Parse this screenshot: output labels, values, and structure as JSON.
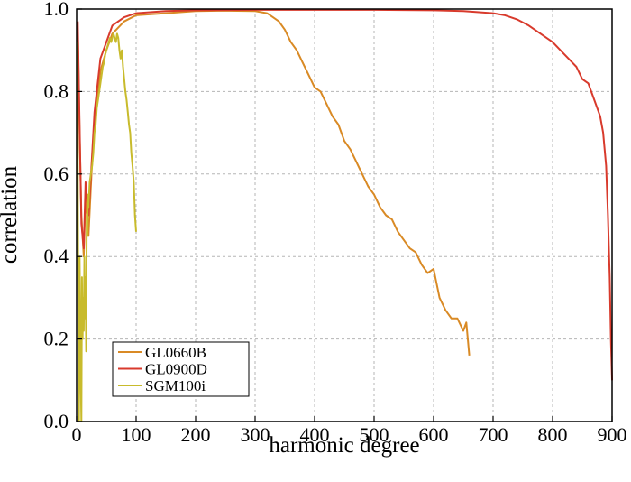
{
  "chart_data": {
    "type": "line",
    "xlabel": "harmonic degree",
    "ylabel": "correlation",
    "xlim": [
      0,
      900
    ],
    "ylim": [
      0.0,
      1.0
    ],
    "xticks": [
      "0",
      "100",
      "200",
      "300",
      "400",
      "500",
      "600",
      "700",
      "800",
      "900"
    ],
    "yticks": [
      "0.0",
      "0.2",
      "0.4",
      "0.6",
      "0.8",
      "1.0"
    ],
    "grid": true,
    "legend_position": "bottom-left",
    "series": [
      {
        "name": "GL0660B",
        "color": "#d98a25",
        "x": [
          2,
          5,
          8,
          12,
          15,
          20,
          25,
          30,
          40,
          50,
          60,
          80,
          100,
          150,
          200,
          250,
          300,
          320,
          330,
          340,
          350,
          360,
          370,
          380,
          390,
          400,
          410,
          420,
          430,
          440,
          450,
          460,
          470,
          480,
          490,
          500,
          510,
          520,
          530,
          540,
          550,
          560,
          570,
          580,
          590,
          600,
          610,
          620,
          630,
          640,
          650,
          655,
          660
        ],
        "y": [
          0.95,
          0.7,
          0.5,
          0.4,
          0.55,
          0.45,
          0.6,
          0.72,
          0.85,
          0.9,
          0.94,
          0.97,
          0.985,
          0.99,
          0.995,
          0.996,
          0.995,
          0.99,
          0.98,
          0.97,
          0.95,
          0.92,
          0.9,
          0.87,
          0.84,
          0.81,
          0.8,
          0.77,
          0.74,
          0.72,
          0.68,
          0.66,
          0.63,
          0.6,
          0.57,
          0.55,
          0.52,
          0.5,
          0.49,
          0.46,
          0.44,
          0.42,
          0.41,
          0.38,
          0.36,
          0.37,
          0.3,
          0.27,
          0.25,
          0.25,
          0.22,
          0.24,
          0.16
        ]
      },
      {
        "name": "GL0900D",
        "color": "#d83a2c",
        "x": [
          2,
          5,
          8,
          12,
          15,
          20,
          25,
          30,
          40,
          50,
          60,
          80,
          100,
          150,
          200,
          300,
          400,
          500,
          600,
          650,
          700,
          720,
          740,
          760,
          780,
          800,
          820,
          840,
          850,
          860,
          870,
          880,
          885,
          890,
          893,
          896,
          898,
          900
        ],
        "y": [
          0.97,
          0.72,
          0.48,
          0.42,
          0.58,
          0.5,
          0.62,
          0.75,
          0.88,
          0.92,
          0.96,
          0.98,
          0.99,
          0.995,
          0.997,
          0.998,
          0.998,
          0.998,
          0.997,
          0.995,
          0.99,
          0.985,
          0.975,
          0.96,
          0.94,
          0.92,
          0.89,
          0.86,
          0.83,
          0.82,
          0.78,
          0.74,
          0.7,
          0.62,
          0.5,
          0.35,
          0.2,
          0.1
        ]
      },
      {
        "name": "SGM100i",
        "color": "#c8bb2c",
        "x": [
          1,
          2,
          3,
          4,
          5,
          6,
          7,
          8,
          9,
          10,
          11,
          12,
          13,
          14,
          15,
          16,
          17,
          18,
          19,
          20,
          22,
          24,
          26,
          28,
          30,
          32,
          34,
          36,
          38,
          40,
          42,
          44,
          46,
          48,
          50,
          52,
          54,
          56,
          58,
          60,
          62,
          64,
          66,
          68,
          70,
          72,
          74,
          76,
          78,
          80,
          82,
          84,
          86,
          88,
          90,
          92,
          94,
          96,
          98,
          100
        ],
        "y": [
          0.92,
          0.6,
          0.2,
          0.0,
          0.4,
          0.25,
          0.1,
          0.0,
          0.35,
          0.2,
          0.3,
          0.22,
          0.4,
          0.25,
          0.35,
          0.17,
          0.5,
          0.45,
          0.55,
          0.52,
          0.58,
          0.6,
          0.62,
          0.65,
          0.7,
          0.72,
          0.76,
          0.78,
          0.8,
          0.82,
          0.84,
          0.86,
          0.87,
          0.89,
          0.9,
          0.91,
          0.92,
          0.93,
          0.92,
          0.93,
          0.94,
          0.93,
          0.92,
          0.94,
          0.93,
          0.9,
          0.88,
          0.9,
          0.86,
          0.83,
          0.8,
          0.78,
          0.75,
          0.72,
          0.7,
          0.65,
          0.62,
          0.58,
          0.5,
          0.46
        ]
      }
    ]
  }
}
